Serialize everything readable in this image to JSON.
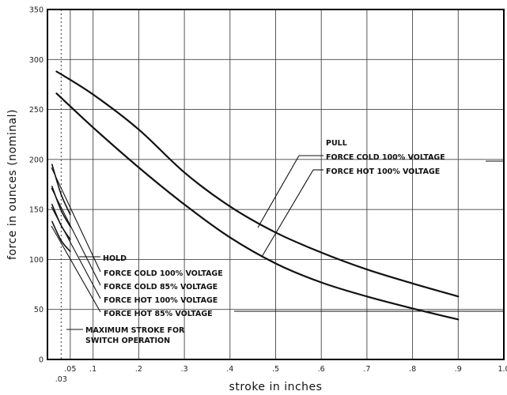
{
  "chart_data": {
    "type": "line",
    "title": "",
    "xlabel": "stroke in inches",
    "ylabel": "force in ounces (nominal)",
    "xlim": [
      0,
      1.0
    ],
    "ylim": [
      0,
      350
    ],
    "grid": true,
    "x_ticks": [
      {
        "v": 0.05,
        "label": ".05"
      },
      {
        "v": 0.1,
        "label": ".1"
      },
      {
        "v": 0.2,
        "label": ".2"
      },
      {
        "v": 0.3,
        "label": ".3"
      },
      {
        "v": 0.4,
        "label": ".4"
      },
      {
        "v": 0.5,
        "label": ".5"
      },
      {
        "v": 0.6,
        "label": ".6"
      },
      {
        "v": 0.7,
        "label": ".7"
      },
      {
        "v": 0.8,
        "label": ".8"
      },
      {
        "v": 0.9,
        "label": ".9"
      },
      {
        "v": 1.0,
        "label": "1.0"
      }
    ],
    "x_tick_extra": {
      "v": 0.03,
      "label": ".03"
    },
    "y_ticks": [
      0,
      50,
      100,
      150,
      200,
      250,
      300,
      350
    ],
    "x_grid": [
      0.05,
      0.1,
      0.2,
      0.3,
      0.4,
      0.5,
      0.6,
      0.7,
      0.8,
      0.9
    ],
    "y_grid": [
      50,
      100,
      150,
      200,
      250,
      300
    ],
    "max_stroke_line": 0.03,
    "series": [
      {
        "key": "pull_cold",
        "points": [
          [
            0.02,
            288
          ],
          [
            0.1,
            265
          ],
          [
            0.2,
            230
          ],
          [
            0.3,
            187
          ],
          [
            0.4,
            153
          ],
          [
            0.5,
            127
          ],
          [
            0.6,
            107
          ],
          [
            0.7,
            90
          ],
          [
            0.8,
            76
          ],
          [
            0.9,
            63
          ]
        ]
      },
      {
        "key": "pull_hot",
        "points": [
          [
            0.02,
            266
          ],
          [
            0.1,
            232
          ],
          [
            0.2,
            192
          ],
          [
            0.3,
            155
          ],
          [
            0.4,
            122
          ],
          [
            0.5,
            96
          ],
          [
            0.6,
            77
          ],
          [
            0.7,
            63
          ],
          [
            0.8,
            51
          ],
          [
            0.9,
            40
          ]
        ]
      },
      {
        "key": "hold_cold_100",
        "points": [
          [
            0.01,
            195
          ],
          [
            0.03,
            165
          ],
          [
            0.05,
            145
          ]
        ]
      },
      {
        "key": "hold_cold_85",
        "points": [
          [
            0.01,
            173
          ],
          [
            0.03,
            149
          ],
          [
            0.05,
            133
          ]
        ]
      },
      {
        "key": "hold_hot_100",
        "points": [
          [
            0.01,
            155
          ],
          [
            0.03,
            134
          ],
          [
            0.05,
            120
          ]
        ]
      },
      {
        "key": "hold_hot_85",
        "points": [
          [
            0.01,
            138
          ],
          [
            0.03,
            119
          ],
          [
            0.05,
            108
          ]
        ]
      }
    ],
    "annotations": {
      "pull": {
        "header": "PULL",
        "cold": "FORCE COLD 100% VOLTAGE",
        "hot": "FORCE HOT 100% VOLTAGE"
      },
      "hold": {
        "header": "HOLD",
        "cold_100": "FORCE COLD 100% VOLTAGE",
        "cold_85": "FORCE COLD 85% VOLTAGE",
        "hot_100": "FORCE HOT 100% VOLTAGE",
        "hot_85": "FORCE HOT 85% VOLTAGE"
      },
      "max_stroke": [
        "MAXIMUM STROKE FOR",
        "SWITCH OPERATION"
      ]
    }
  }
}
